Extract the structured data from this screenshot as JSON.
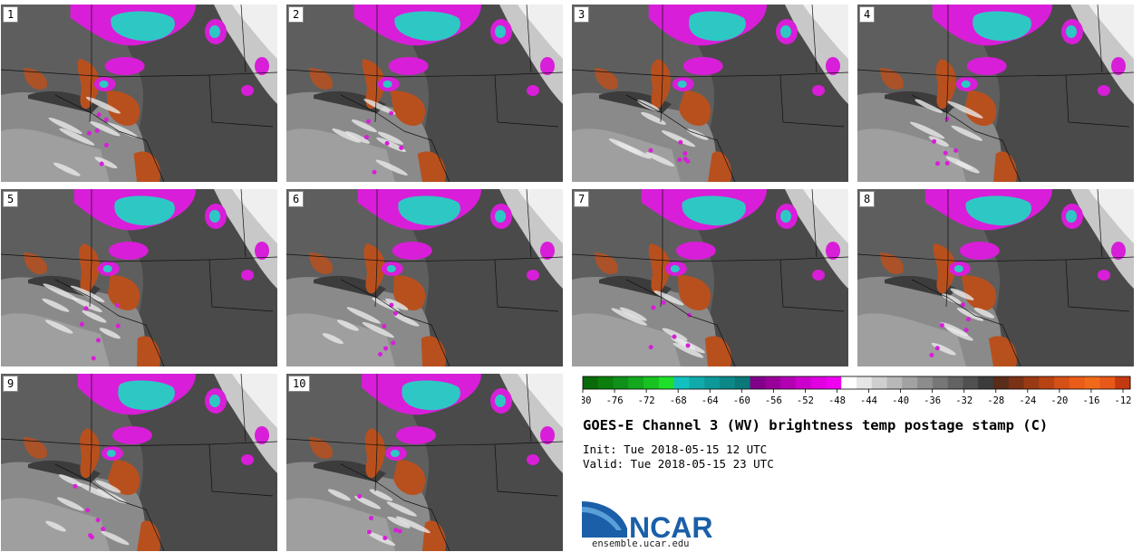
{
  "panels": [
    {
      "label": "1"
    },
    {
      "label": "2"
    },
    {
      "label": "3"
    },
    {
      "label": "4"
    },
    {
      "label": "5"
    },
    {
      "label": "6"
    },
    {
      "label": "7"
    },
    {
      "label": "8"
    },
    {
      "label": "9"
    },
    {
      "label": "10"
    }
  ],
  "colorbar": {
    "ticks": [
      "-80",
      "-76",
      "-72",
      "-68",
      "-64",
      "-60",
      "-56",
      "-52",
      "-48",
      "-44",
      "-40",
      "-36",
      "-32",
      "-28",
      "-24",
      "-20",
      "-16",
      "-12"
    ],
    "colors": [
      "#0a6a0a",
      "#0c7e0c",
      "#10901a",
      "#14a81e",
      "#18c220",
      "#1ee02a",
      "#12c0c0",
      "#10aaaa",
      "#0e9898",
      "#0c8888",
      "#0a7878",
      "#80008a",
      "#990099",
      "#b300b3",
      "#cc00cc",
      "#e000e0",
      "#f000f0",
      "#ffffff",
      "#e6e6e6",
      "#cfcfcf",
      "#b8b8b8",
      "#a2a2a2",
      "#8c8c8c",
      "#777777",
      "#636363",
      "#505050",
      "#3c3c3c",
      "#5a2c1a",
      "#7a3216",
      "#9a3a14",
      "#b84414",
      "#d45016",
      "#ea5c18",
      "#f06a1a",
      "#e85818",
      "#c43a10"
    ]
  },
  "title": "GOES-E Channel 3 (WV) brightness temp postage stamp (C)",
  "init": "Init: Tue 2018-05-15 12 UTC",
  "valid": "Valid: Tue 2018-05-15 23 UTC",
  "logo_text": "NCAR",
  "site": "ensemble.ucar.edu",
  "colors": {
    "cyan": "#2ec8c4",
    "magenta": "#d81ed8",
    "orange": "#b8501e",
    "bg_gray": "#5a5a5a"
  }
}
